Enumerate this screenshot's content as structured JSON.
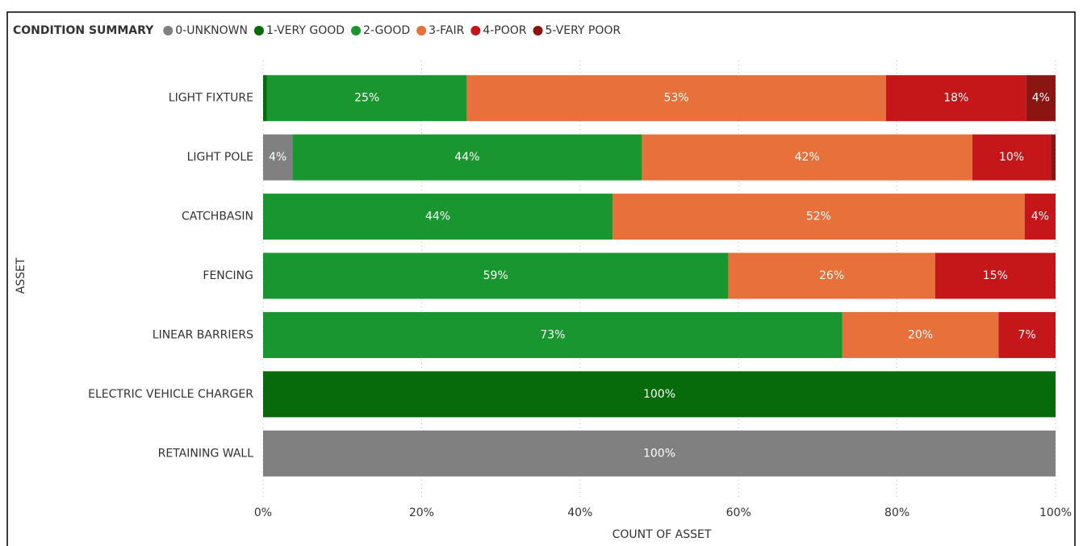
{
  "chart_data": {
    "type": "stacked_barh",
    "legend_title": "CONDITION SUMMARY",
    "categories": [
      "LIGHT FIXTURE",
      "LIGHT POLE",
      "CATCHBASIN",
      "FENCING",
      "LINEAR BARRIERS",
      "ELECTRIC VEHICLE CHARGER",
      "RETAINING WALL"
    ],
    "series": [
      {
        "name": "0-UNKNOWN",
        "color": "#808080",
        "values": [
          null,
          3.7,
          null,
          null,
          null,
          null,
          100
        ],
        "value_labels": [
          null,
          "4%",
          null,
          null,
          null,
          null,
          "100%"
        ]
      },
      {
        "name": "1-VERY GOOD",
        "color": "#076b0b",
        "values": [
          0.5,
          null,
          null,
          null,
          null,
          100,
          null
        ],
        "value_labels": [
          null,
          null,
          null,
          null,
          null,
          "100%",
          null
        ]
      },
      {
        "name": "2-GOOD",
        "color": "#1a9630",
        "values": [
          25.2,
          44.1,
          44.1,
          58.7,
          73.1,
          null,
          null
        ],
        "value_labels": [
          "25%",
          "44%",
          "44%",
          "59%",
          "73%",
          null,
          null
        ]
      },
      {
        "name": "3-FAIR",
        "color": "#e8703a",
        "values": [
          52.9,
          41.7,
          52.0,
          26.1,
          19.7,
          null,
          null
        ],
        "value_labels": [
          "53%",
          "42%",
          "52%",
          "26%",
          "20%",
          null,
          null
        ]
      },
      {
        "name": "4-POOR",
        "color": "#c5161a",
        "values": [
          17.7,
          9.9,
          3.9,
          15.2,
          7.2,
          null,
          null
        ],
        "value_labels": [
          "18%",
          "10%",
          "4%",
          "15%",
          "7%",
          null,
          null
        ]
      },
      {
        "name": "5-VERY POOR",
        "color": "#8b1510",
        "values": [
          3.7,
          0.6,
          null,
          null,
          null,
          null,
          null
        ],
        "value_labels": [
          "4%",
          null,
          null,
          null,
          null,
          null,
          null
        ]
      }
    ],
    "xlim": [
      0,
      100
    ],
    "xticks": [
      {
        "value": 0,
        "label": "0%"
      },
      {
        "value": 20,
        "label": "20%"
      },
      {
        "value": 40,
        "label": "40%"
      },
      {
        "value": 60,
        "label": "60%"
      },
      {
        "value": 80,
        "label": "80%"
      },
      {
        "value": 100,
        "label": "100%"
      }
    ],
    "xlabel": "COUNT OF ASSET",
    "ylabel": "ASSET",
    "grid": true,
    "legend": "top"
  }
}
